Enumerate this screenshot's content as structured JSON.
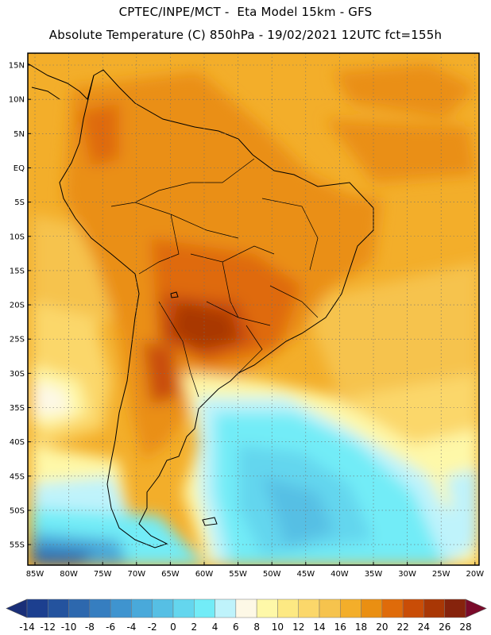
{
  "header": {
    "line1": "CPTEC/INPE/MCT -  Eta Model 15km - GFS",
    "line2": "Absolute Temperature (C) 850hPa - 19/02/2021 12UTC fct=155h"
  },
  "map": {
    "lat_labels": [
      "15N",
      "10N",
      "5N",
      "EQ",
      "5S",
      "10S",
      "15S",
      "20S",
      "25S",
      "30S",
      "35S",
      "40S",
      "45S",
      "50S",
      "55S"
    ],
    "lon_labels": [
      "85W",
      "80W",
      "75W",
      "70W",
      "65W",
      "60W",
      "55W",
      "50W",
      "45W",
      "40W",
      "35W",
      "30W",
      "25W",
      "20W"
    ]
  },
  "colorbar": {
    "ticks": [
      "-14",
      "-12",
      "-10",
      "-8",
      "-6",
      "-4",
      "-2",
      "0",
      "2",
      "4",
      "6",
      "8",
      "10",
      "12",
      "14",
      "16",
      "18",
      "20",
      "22",
      "24",
      "26",
      "28"
    ],
    "colors": [
      "#1c3f8f",
      "#24539e",
      "#2d68ae",
      "#367ec0",
      "#3f94cf",
      "#49a9da",
      "#56bfe4",
      "#64d6ee",
      "#72ecf7",
      "#bff3fb",
      "#fdf8e6",
      "#fef8a8",
      "#fde983",
      "#fbd76a",
      "#f6c34d",
      "#f3ae2a",
      "#ea8f12",
      "#df6b0a",
      "#c94d07",
      "#a93705",
      "#86230c"
    ],
    "under_color": "#1a2f78",
    "over_color": "#7a0a2a"
  }
}
